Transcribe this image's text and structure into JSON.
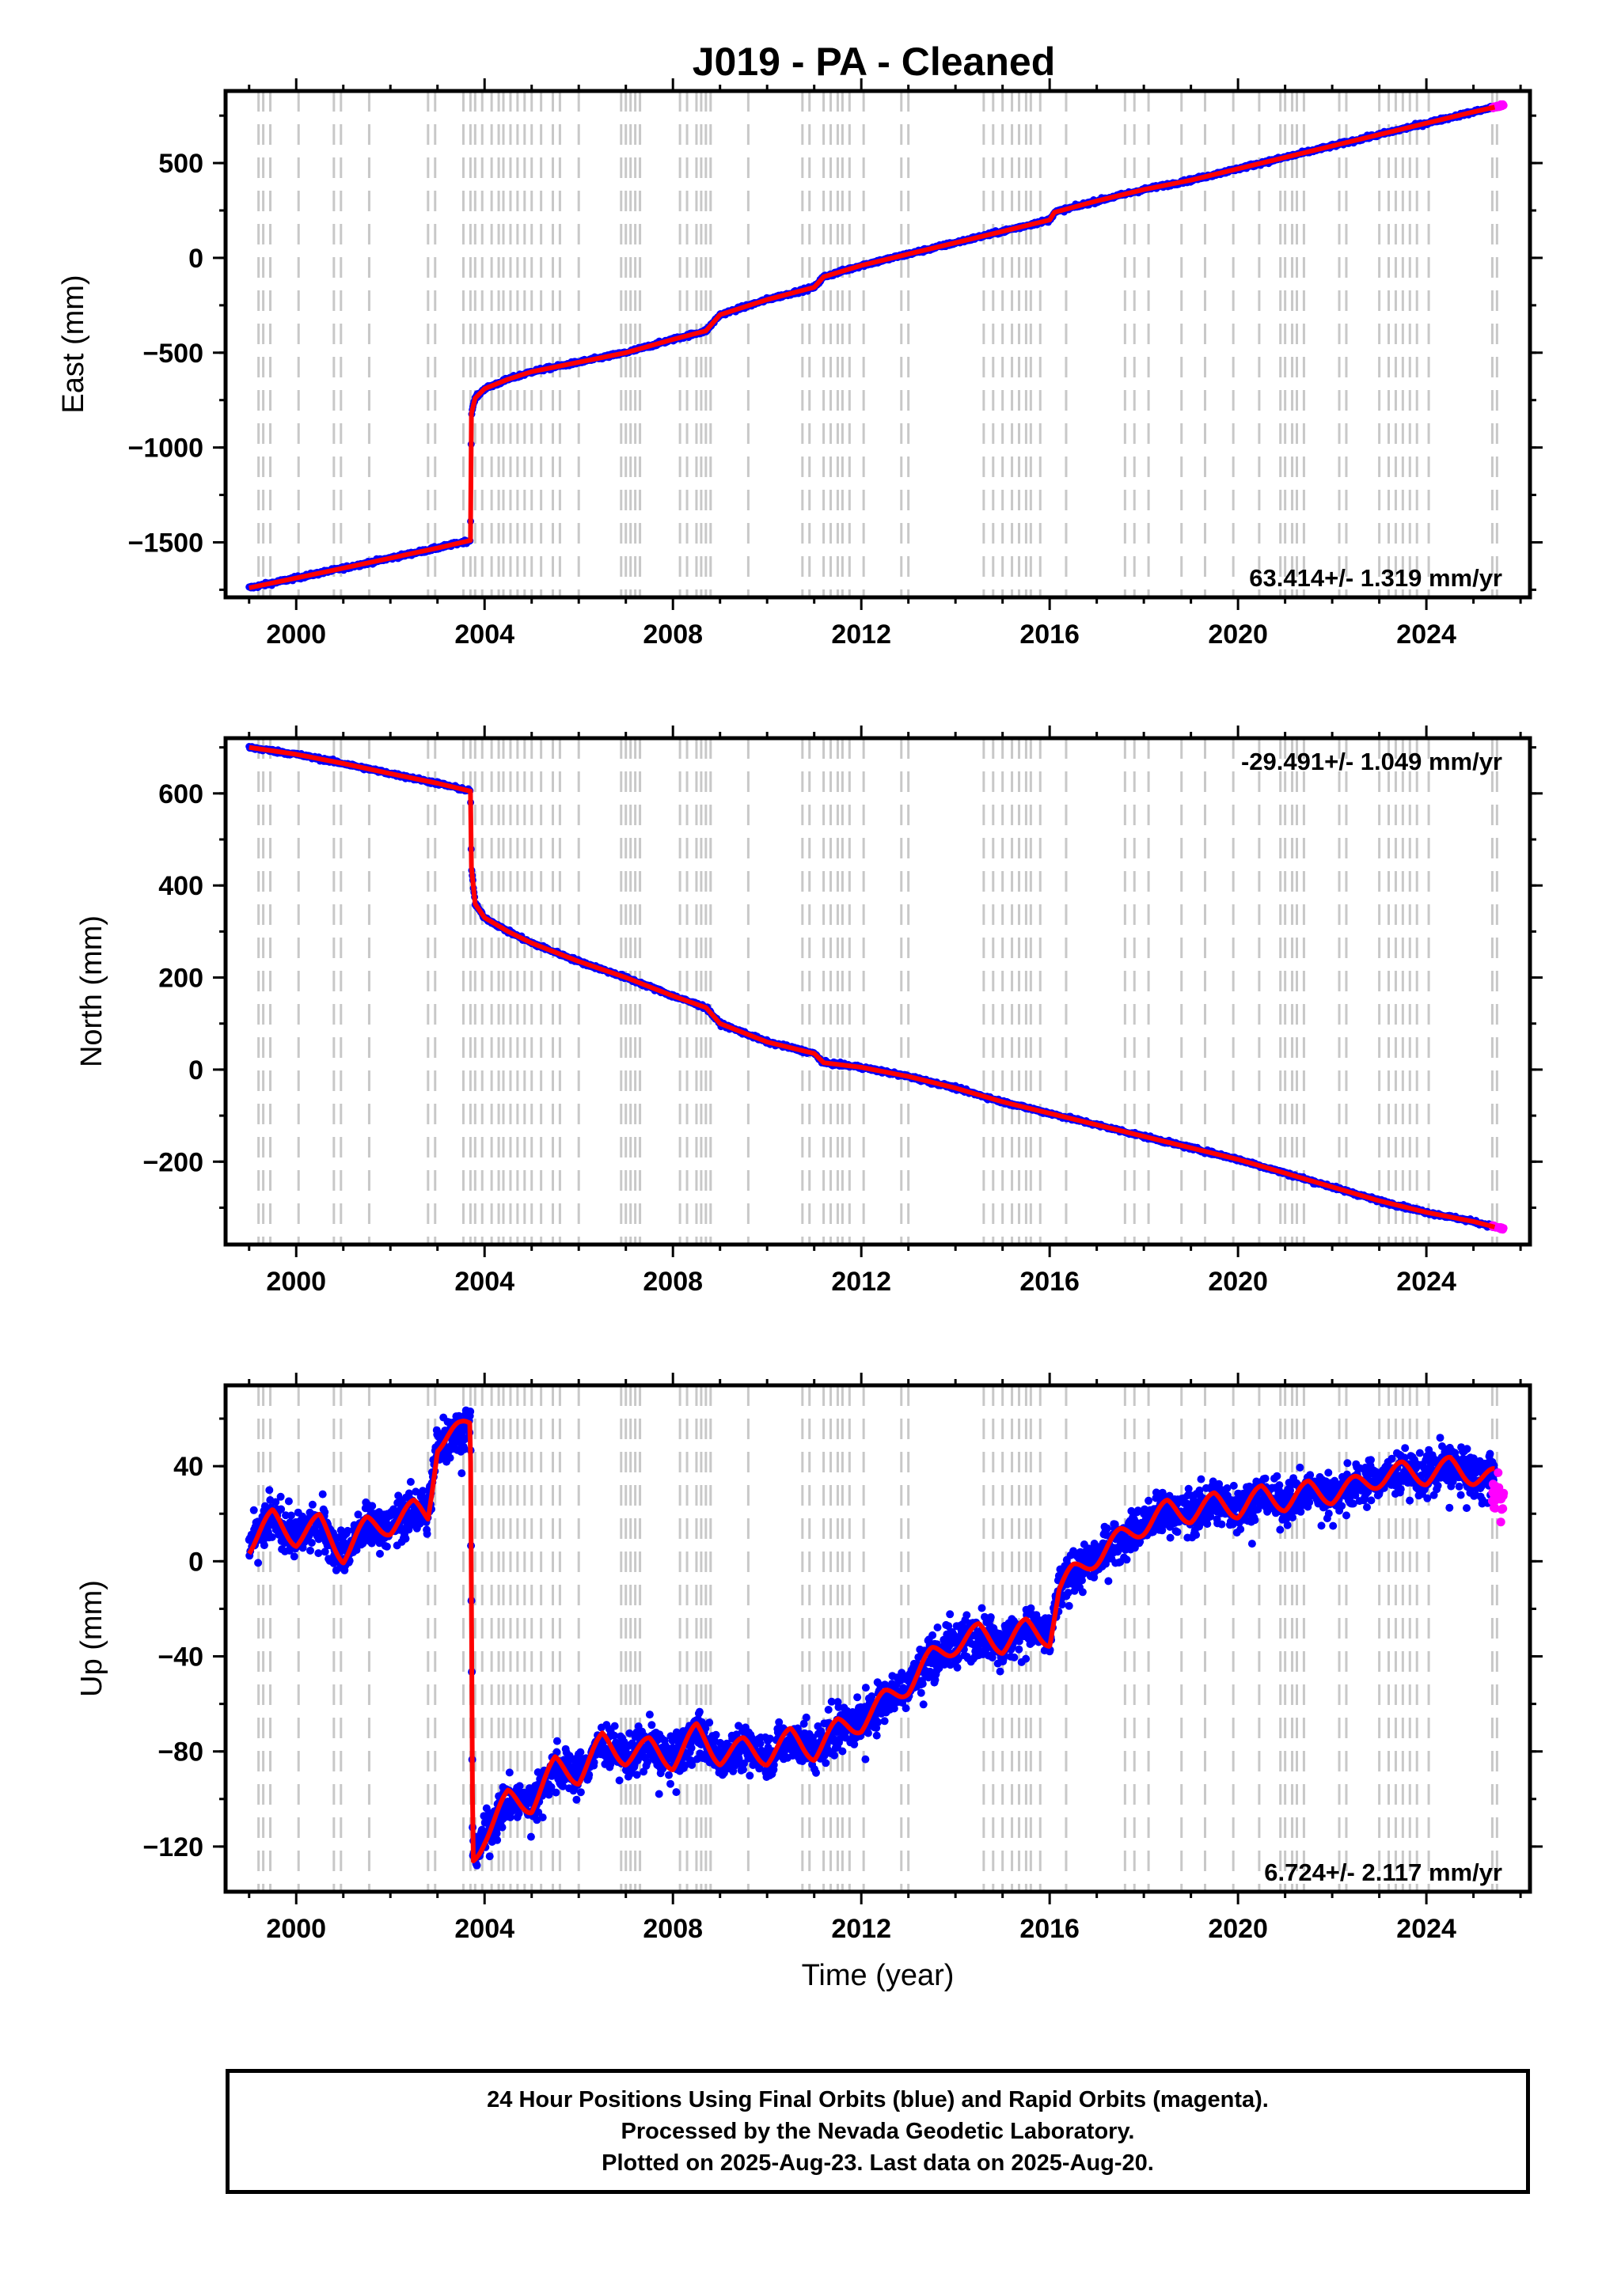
{
  "title": "J019  - PA - Cleaned",
  "colors": {
    "final_orbits": "#0000ff",
    "rapid_orbits": "#ff00ff",
    "model": "#ff0000",
    "event_lines": "#c8c8c8",
    "frame": "#000000"
  },
  "chart_data": [
    {
      "type": "scatter",
      "component": "east",
      "ylabel": "East (mm)",
      "xlabel": "",
      "xlim": [
        1998.5,
        2026.2
      ],
      "ylim": [
        -1790,
        880
      ],
      "xticks": [
        2000,
        2004,
        2008,
        2012,
        2016,
        2020,
        2024
      ],
      "yticks": [
        500,
        0,
        -500,
        -1000,
        -1500
      ],
      "ytick_labels": [
        "500",
        "0",
        "−500",
        "−1000",
        "−1500"
      ],
      "rate_label": "63.414+/- 1.319 mm/yr",
      "rate_position": "bottom-right",
      "series": [
        {
          "role": "final_orbits",
          "x": [
            1999.0,
            2000.0,
            2001.0,
            2002.0,
            2003.0,
            2003.7,
            2003.72,
            2003.8,
            2004.0,
            2004.5,
            2005.0,
            2006.0,
            2007.0,
            2008.0,
            2008.7,
            2009.0,
            2010.0,
            2011.0,
            2011.2,
            2012.0,
            2013.0,
            2014.0,
            2015.0,
            2016.0,
            2016.1,
            2017.0,
            2018.0,
            2019.0,
            2020.0,
            2021.0,
            2022.0,
            2023.0,
            2024.0,
            2025.0,
            2025.45
          ],
          "y": [
            -1740,
            -1688,
            -1636,
            -1583,
            -1530,
            -1490,
            -820,
            -740,
            -690,
            -640,
            -600,
            -550,
            -500,
            -430,
            -385,
            -300,
            -220,
            -155,
            -100,
            -40,
            20,
            80,
            140,
            200,
            240,
            300,
            360,
            410,
            470,
            530,
            590,
            650,
            710,
            770,
            795
          ]
        },
        {
          "role": "rapid_orbits",
          "x": [
            2025.4,
            2025.55,
            2025.64
          ],
          "y": [
            793,
            800,
            805
          ]
        }
      ]
    },
    {
      "type": "scatter",
      "component": "north",
      "ylabel": "North (mm)",
      "xlabel": "",
      "xlim": [
        1998.5,
        2026.2
      ],
      "ylim": [
        -380,
        720
      ],
      "xticks": [
        2000,
        2004,
        2008,
        2012,
        2016,
        2020,
        2024
      ],
      "yticks": [
        600,
        400,
        200,
        0,
        -200
      ],
      "ytick_labels": [
        "600",
        "400",
        "200",
        "0",
        "−200"
      ],
      "rate_label": "-29.491+/- 1.049 mm/yr",
      "rate_position": "top-right",
      "series": [
        {
          "role": "final_orbits",
          "x": [
            1999.0,
            2000.0,
            2001.0,
            2002.0,
            2003.0,
            2003.7,
            2003.72,
            2003.8,
            2004.0,
            2004.5,
            2005.0,
            2006.0,
            2007.0,
            2008.0,
            2008.7,
            2009.0,
            2010.0,
            2011.0,
            2011.2,
            2012.0,
            2013.0,
            2014.0,
            2015.0,
            2016.0,
            2017.0,
            2018.0,
            2019.0,
            2020.0,
            2021.0,
            2022.0,
            2023.0,
            2024.0,
            2025.0,
            2025.45
          ],
          "y": [
            700,
            685,
            665,
            643,
            622,
            605,
            440,
            360,
            330,
            300,
            275,
            235,
            200,
            160,
            135,
            100,
            60,
            35,
            15,
            5,
            -15,
            -40,
            -70,
            -95,
            -120,
            -145,
            -170,
            -195,
            -225,
            -255,
            -285,
            -310,
            -330,
            -342
          ]
        },
        {
          "role": "rapid_orbits",
          "x": [
            2025.4,
            2025.55,
            2025.64
          ],
          "y": [
            -340,
            -344,
            -346
          ]
        }
      ]
    },
    {
      "type": "scatter",
      "component": "up",
      "ylabel": "Up (mm)",
      "xlabel": "Time (year)",
      "xlim": [
        1998.5,
        2026.2
      ],
      "ylim": [
        -139,
        74
      ],
      "xticks": [
        2000,
        2004,
        2008,
        2012,
        2016,
        2020,
        2024
      ],
      "yticks": [
        40,
        0,
        -40,
        -80,
        -120
      ],
      "ytick_labels": [
        "40",
        "0",
        "−40",
        "−80",
        "−120"
      ],
      "rate_label": "6.724+/- 2.117 mm/yr",
      "rate_position": "bottom-right",
      "series": [
        {
          "role": "final_orbits",
          "x": [
            1999.0,
            1999.5,
            2000.0,
            2000.5,
            2001.0,
            2001.5,
            2002.0,
            2002.5,
            2002.8,
            2003.0,
            2003.5,
            2003.7,
            2003.75,
            2004.0,
            2004.5,
            2005.0,
            2005.5,
            2006.0,
            2006.5,
            2007.0,
            2007.5,
            2008.0,
            2008.5,
            2009.0,
            2009.5,
            2010.0,
            2010.5,
            2011.0,
            2011.5,
            2012.0,
            2012.5,
            2013.0,
            2013.5,
            2014.0,
            2014.5,
            2015.0,
            2015.5,
            2016.0,
            2016.2,
            2016.5,
            2017.0,
            2017.5,
            2018.0,
            2018.5,
            2019.0,
            2019.5,
            2020.0,
            2020.5,
            2021.0,
            2021.5,
            2022.0,
            2022.5,
            2023.0,
            2023.5,
            2024.0,
            2024.5,
            2025.0,
            2025.45
          ],
          "y": [
            7,
            18,
            10,
            16,
            3,
            15,
            15,
            22,
            20,
            50,
            55,
            58,
            -125,
            -115,
            -100,
            -102,
            -86,
            -90,
            -76,
            -82,
            -78,
            -84,
            -72,
            -82,
            -78,
            -82,
            -74,
            -80,
            -70,
            -68,
            -58,
            -52,
            -40,
            -35,
            -30,
            -35,
            -28,
            -32,
            -12,
            -5,
            2,
            10,
            15,
            22,
            20,
            25,
            22,
            28,
            25,
            30,
            28,
            32,
            35,
            38,
            36,
            40,
            36,
            35
          ]
        },
        {
          "role": "rapid_orbits",
          "x": [
            2025.4,
            2025.5,
            2025.6,
            2025.64
          ],
          "y": [
            25,
            32,
            22,
            28
          ]
        }
      ]
    }
  ],
  "footer": {
    "line1": "24 Hour Positions Using Final Orbits (blue) and Rapid Orbits (magenta).",
    "line2": "Processed by the Nevada Geodetic Laboratory.",
    "line3": "Plotted on 2025-Aug-23. Last data on 2025-Aug-20."
  }
}
